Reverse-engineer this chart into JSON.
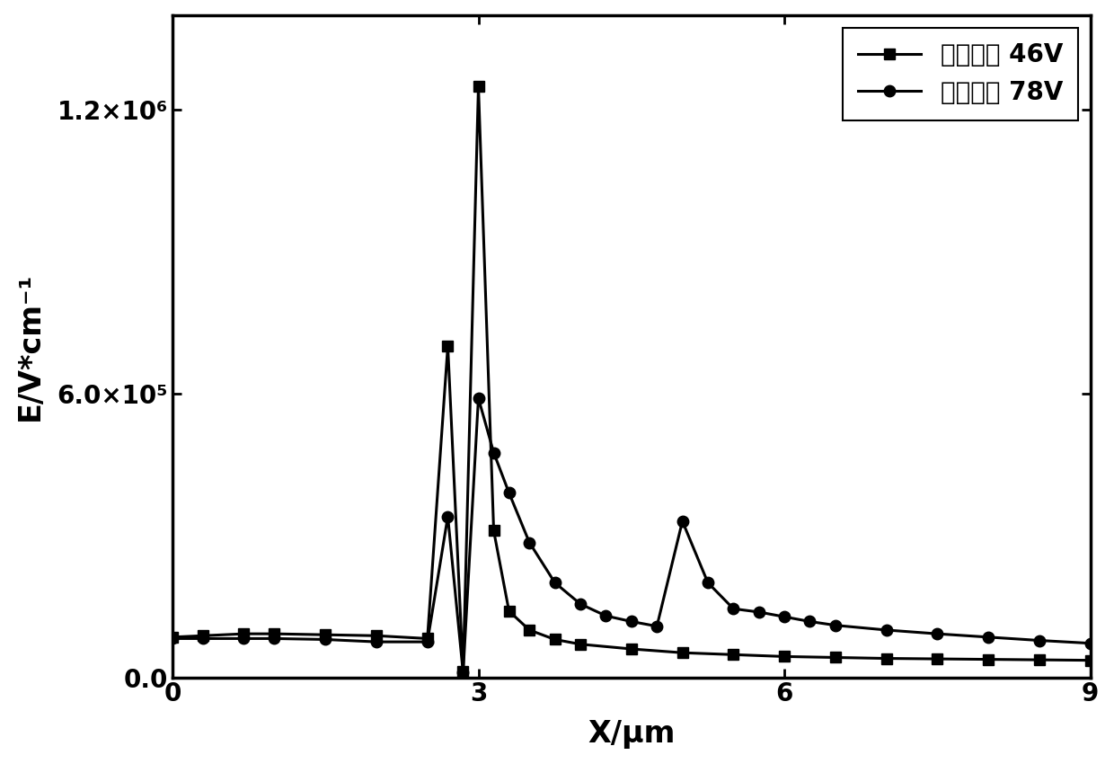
{
  "series1_label": "传统结构 46V",
  "series2_label": "新型结构 78V",
  "series1_x": [
    0.0,
    0.3,
    0.7,
    1.0,
    1.5,
    2.0,
    2.5,
    2.7,
    2.85,
    3.0,
    3.15,
    3.3,
    3.5,
    3.75,
    4.0,
    4.5,
    5.0,
    5.5,
    6.0,
    6.5,
    7.0,
    7.5,
    8.0,
    8.5,
    9.0
  ],
  "series1_y": [
    85000,
    88000,
    92000,
    92000,
    90000,
    88000,
    82000,
    700000,
    12000,
    1250000,
    310000,
    140000,
    100000,
    80000,
    70000,
    60000,
    52000,
    48000,
    44000,
    42000,
    40000,
    39000,
    38000,
    37000,
    36000
  ],
  "series2_x": [
    0.0,
    0.3,
    0.7,
    1.0,
    1.5,
    2.0,
    2.5,
    2.7,
    2.85,
    3.0,
    3.15,
    3.3,
    3.5,
    3.75,
    4.0,
    4.25,
    4.5,
    4.75,
    5.0,
    5.25,
    5.5,
    5.75,
    6.0,
    6.25,
    6.5,
    7.0,
    7.5,
    8.0,
    8.5,
    9.0
  ],
  "series2_y": [
    82000,
    82000,
    82000,
    82000,
    80000,
    75000,
    75000,
    340000,
    10000,
    590000,
    475000,
    390000,
    285000,
    200000,
    155000,
    130000,
    118000,
    108000,
    330000,
    200000,
    145000,
    138000,
    128000,
    118000,
    110000,
    100000,
    92000,
    85000,
    78000,
    72000
  ],
  "xlabel": "X/μm",
  "ylabel": "E/V*cm⁻¹",
  "xlim": [
    0,
    9
  ],
  "ylim": [
    0,
    1400000.0
  ],
  "xticks": [
    0,
    3,
    6,
    9
  ],
  "ytick_values": [
    0,
    600000,
    1200000
  ],
  "line_color": "#000000",
  "marker1": "s",
  "marker2": "o",
  "linewidth": 2.2,
  "markersize": 9,
  "legend_fontsize": 20,
  "axis_fontsize": 24,
  "tick_fontsize": 20,
  "background_color": "#ffffff"
}
